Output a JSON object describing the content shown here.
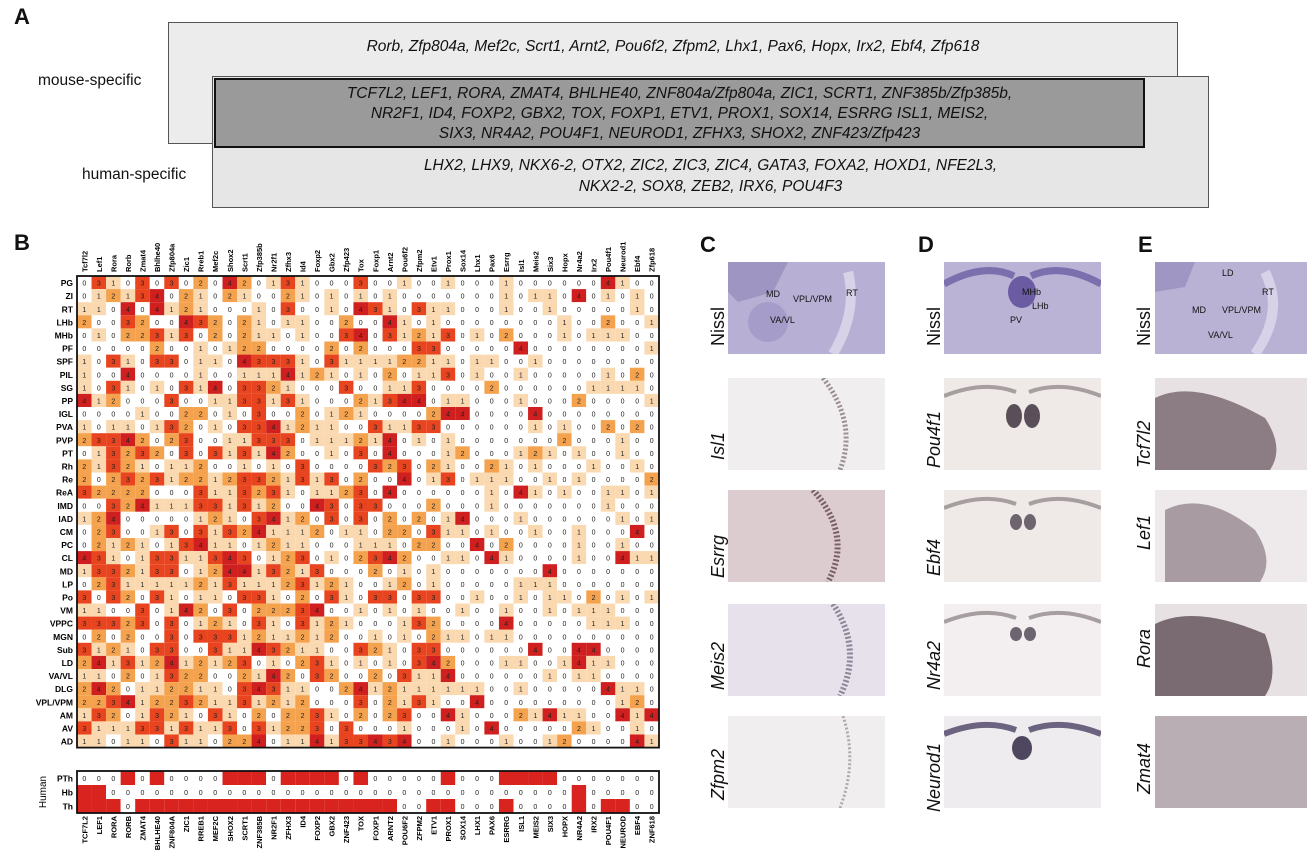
{
  "panels": {
    "a": "A",
    "b": "B",
    "c": "C",
    "d": "D",
    "e": "E"
  },
  "venn": {
    "mouse_label": "mouse-specific",
    "human_label": "human-specific",
    "mouse_genes": "Rorb, Zfp804a, Mef2c, Scrt1, Arnt2, Pou6f2, Zfpm2, Lhx1, Pax6, Hopx, Irx2, Ebf4, Zfp618",
    "shared_genes": [
      "TCF7L2, LEF1, RORA, ZMAT4, BHLHE40, ZNF804a/Zfp804a, ZIC1, SCRT1, ZNF385b/Zfp385b,",
      "NR2F1, ID4, FOXP2, GBX2, TOX, FOXP1,  ETV1, PROX1, SOX14, ESRRG ISL1, MEIS2,",
      "SIX3, NR4A2, POU4F1, NEUROD1, ZFHX3, SHOX2, ZNF423/Zfp423"
    ],
    "human_genes": [
      "LHX2, LHX9, NKX6-2, OTX2, ZIC2, ZIC3, ZIC4, GATA3, FOXA2, HOXD1, NFE2L3,",
      "NKX2-2, SOX8, ZEB2, IRX6, POU4F3"
    ]
  },
  "chart_data": [
    {
      "type": "heatmap",
      "title": "",
      "columns": [
        "Tcf7l2",
        "Lef1",
        "Rora",
        "Rorb",
        "Zmat4",
        "Bhlhe40",
        "Zfp804a",
        "Zic1",
        "Rreb1",
        "Mef2c",
        "Shox2",
        "Scrt1",
        "Zfp385b",
        "Nr2f1",
        "Zfhx3",
        "Id4",
        "Foxp2",
        "Gbx2",
        "Zfp423",
        "Tox",
        "Foxp1",
        "Arnt2",
        "Pou6f2",
        "Zfpm2",
        "Etv1",
        "Prox1",
        "Sox14",
        "Lhx1",
        "Pax6",
        "Esrrg",
        "Isl1",
        "Meis2",
        "Six3",
        "Hopx",
        "Nr4a2",
        "Irx2",
        "Pou4f1",
        "Neurod1",
        "Ebf4",
        "Zfp618"
      ],
      "rows": [
        "PG",
        "ZI",
        "RT",
        "LHb",
        "MHb",
        "PF",
        "SPF",
        "PIL",
        "SG",
        "PP",
        "IGL",
        "PVA",
        "PVP",
        "PT",
        "Rh",
        "Re",
        "ReA",
        "IMD",
        "IAD",
        "CM",
        "PC",
        "CL",
        "MD",
        "LP",
        "Po",
        "VM",
        "VPPC",
        "MGN",
        "Sub",
        "LD",
        "VA/VL",
        "DLG",
        "VPL/VPM",
        "AM",
        "AV",
        "AD"
      ],
      "color_scale": {
        "0": "#ffffff",
        "1": "#fbd9b0",
        "2": "#f5a24e",
        "3": "#e8441f",
        "4": "#cf1f1f"
      }
    },
    {
      "type": "heatmap",
      "group_label": "Human",
      "columns": [
        "TCF7L2",
        "LEF1",
        "RORA",
        "RORB",
        "ZMAT4",
        "BHLHE40",
        "ZNF804A",
        "ZIC1",
        "RREB1",
        "MEF2C",
        "SHOX2",
        "SCRT1",
        "ZNF385B",
        "NR2F1",
        "ZFHX3",
        "ID4",
        "FOXP2",
        "GBX2",
        "ZNF423",
        "TOX",
        "FOXP1",
        "ARNT2",
        "POU6F2",
        "ZFPM2",
        "ETV1",
        "PROX1",
        "SOX14",
        "LHX1",
        "PAX6",
        "ESRRG",
        "ISL1",
        "MEIS2",
        "SIX3",
        "HOPX",
        "NR4A2",
        "IRX2",
        "POU4F1",
        "NEUROD",
        "EBF4",
        "ZNF618"
      ],
      "rows": [
        "PTh",
        "Hb",
        "Th"
      ],
      "values": [
        [
          0,
          0,
          0,
          1,
          0,
          1,
          0,
          0,
          0,
          0,
          1,
          1,
          1,
          0,
          1,
          1,
          1,
          1,
          0,
          1,
          0,
          0,
          0,
          0,
          0,
          1,
          0,
          0,
          0,
          1,
          1,
          1,
          1,
          0,
          0,
          0,
          0,
          0,
          0,
          0
        ],
        [
          1,
          1,
          0,
          0,
          0,
          0,
          0,
          0,
          0,
          0,
          0,
          0,
          0,
          0,
          0,
          0,
          0,
          0,
          0,
          0,
          0,
          0,
          0,
          0,
          0,
          0,
          0,
          0,
          0,
          0,
          0,
          0,
          0,
          0,
          1,
          0,
          0,
          0,
          0,
          0
        ],
        [
          1,
          1,
          1,
          0,
          1,
          1,
          1,
          1,
          1,
          1,
          1,
          1,
          1,
          1,
          1,
          1,
          1,
          1,
          1,
          1,
          1,
          1,
          0,
          0,
          1,
          1,
          0,
          0,
          0,
          1,
          0,
          0,
          0,
          0,
          1,
          0,
          1,
          1,
          0,
          0
        ]
      ],
      "color_scale": {
        "0": "#ffffff",
        "1": "#d9231f"
      }
    }
  ],
  "ish": {
    "c": {
      "labels": [
        "Nissl",
        "Isl1",
        "Esrrg",
        "Meis2",
        "Zfpm2"
      ],
      "annotations": [
        "MD",
        "VPL/VPM",
        "RT",
        "VA/VL"
      ]
    },
    "d": {
      "labels": [
        "Nissl",
        "Pou4f1",
        "Ebf4",
        "Nr4a2",
        "Neurod1"
      ],
      "annotations": [
        "MHb",
        "LHb",
        "PV"
      ]
    },
    "e": {
      "labels": [
        "Nissl",
        "Tcf7l2",
        "Lef1",
        "Rora",
        "Zmat4"
      ],
      "annotations": [
        "LD",
        "RT",
        "MD",
        "VPL/VPM",
        "VA/VL"
      ]
    }
  }
}
